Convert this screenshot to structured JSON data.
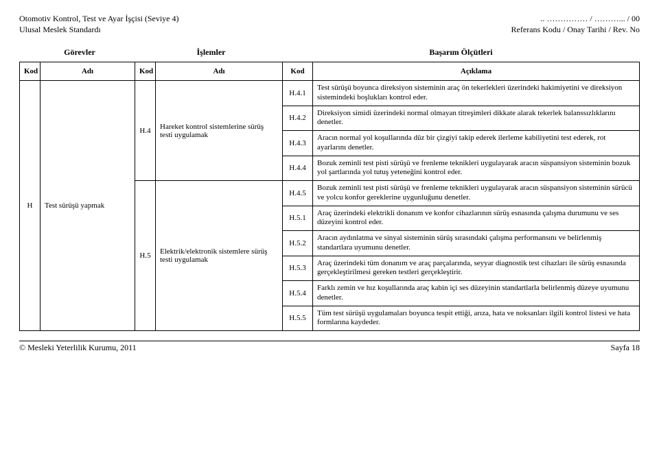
{
  "header": {
    "left_line1": "Otomotiv Kontrol, Test ve Ayar İşçisi (Seviye 4)",
    "left_line2": "Ulusal Meslek Standardı",
    "right_line1": ".. …………… / ………... / 00",
    "right_line2": "Referans Kodu / Onay Tarihi / Rev. No"
  },
  "section_headers": {
    "gorevler": "Görevler",
    "islemler": "İşlemler",
    "basarim": "Başarım Ölçütleri"
  },
  "col_headers": {
    "kod": "Kod",
    "adi": "Adı",
    "aciklama": "Açıklama"
  },
  "task": {
    "kod": "H",
    "adi": "Test sürüşü yapmak"
  },
  "ops": [
    {
      "kod": "H.4",
      "adi": "Hareket kontrol sistemlerine sürüş testi uygulamak"
    },
    {
      "kod": "H.5",
      "adi": "Elektrik/elektronik sistemlere sürüş testi uygulamak"
    }
  ],
  "criteria": [
    {
      "kod": "H.4.1",
      "text": "Test sürüşü boyunca direksiyon sisteminin araç ön tekerlekleri üzerindeki hakimiyetini ve direksiyon sistemindeki boşlukları kontrol eder."
    },
    {
      "kod": "H.4.2",
      "text": "Direksiyon simidi üzerindeki normal olmayan titreşimleri dikkate alarak tekerlek balanssızlıklarını denetler."
    },
    {
      "kod": "H.4.3",
      "text": "Aracın normal yol koşullarında düz bir çizgiyi takip ederek ilerleme kabiliyetini test ederek, rot ayarlarını denetler."
    },
    {
      "kod": "H.4.4",
      "text": "Bozuk zeminli test pisti sürüşü ve frenleme teknikleri uygulayarak aracın süspansiyon sisteminin bozuk yol şartlarında yol tutuş yeteneğini kontrol eder."
    },
    {
      "kod": "H.4.5",
      "text": "Bozuk zeminli test pisti sürüşü ve frenleme teknikleri uygulayarak aracın süspansiyon sisteminin sürücü ve yolcu konfor gereklerine uygunluğunu denetler."
    },
    {
      "kod": "H.5.1",
      "text": "Araç üzerindeki elektrikli donanım ve konfor cihazlarının sürüş esnasında çalışma durumunu ve ses düzeyini kontrol eder."
    },
    {
      "kod": "H.5.2",
      "text": "Aracın aydınlatma ve sinyal sisteminin sürüş sırasındaki çalışma performansını ve belirlenmiş standartlara uyumunu denetler."
    },
    {
      "kod": "H.5.3",
      "text": "Araç üzerindeki tüm donanım ve araç parçalarında, seyyar diagnostik test cihazları ile sürüş esnasında gerçekleştirilmesi gereken testleri gerçekleştirir."
    },
    {
      "kod": "H.5.4",
      "text": "Farklı zemin ve hız koşullarında araç kabin içi ses düzeyinin standartlarla belirlenmiş düzeye uyumunu denetler."
    },
    {
      "kod": "H.5.5",
      "text": "Tüm test sürüşü uygulamaları boyunca tespit ettiği, arıza, hata ve noksanları ilgili kontrol listesi ve hata formlarına kaydeder."
    }
  ],
  "footer": {
    "left": "© Mesleki Yeterlilik Kurumu, 2011",
    "right": "Sayfa 18"
  }
}
